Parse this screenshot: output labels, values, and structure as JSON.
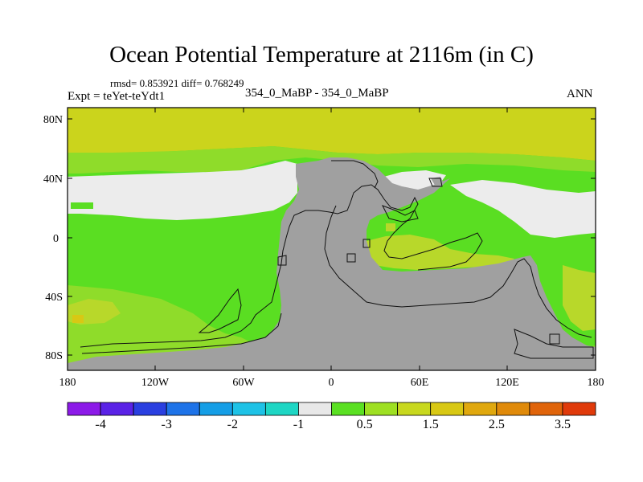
{
  "title": "Ocean Potential Temperature at 2116m (in C)",
  "stats": "rmsd= 0.853921  diff= 0.768249",
  "experiment": "Expt = teYet-teYdt1",
  "subtitle": "354_0_MaBP - 354_0_MaBP",
  "season": "ANN",
  "lat_labels": [
    "80N",
    "40N",
    "0",
    "40S",
    "80S"
  ],
  "lon_labels": [
    "180",
    "120W",
    "60W",
    "0",
    "60E",
    "120E",
    "180"
  ],
  "colorbar": {
    "colors": [
      "#8c1ae8",
      "#5a22e6",
      "#2a3fe0",
      "#1e73e8",
      "#159ee6",
      "#1ec2e6",
      "#1ed6c4",
      "#e8e8e8",
      "#5ae022",
      "#9ee022",
      "#c8d81e",
      "#d8c814",
      "#e0a80e",
      "#e08a0a",
      "#e0640a",
      "#e03a0a"
    ],
    "labels": [
      "-4",
      "-3",
      "-2",
      "-1",
      "0.5",
      "1.5",
      "2.5",
      "3.5"
    ]
  },
  "colors": {
    "land": "#a0a0a0",
    "high_lat_band": "#cbd41c",
    "mid_green": "#5ade22",
    "light_green": "#8fdc2a",
    "pale": "#ececec",
    "cyan_spot": "#1ec8c8",
    "yellowish": "#b8d82a"
  }
}
